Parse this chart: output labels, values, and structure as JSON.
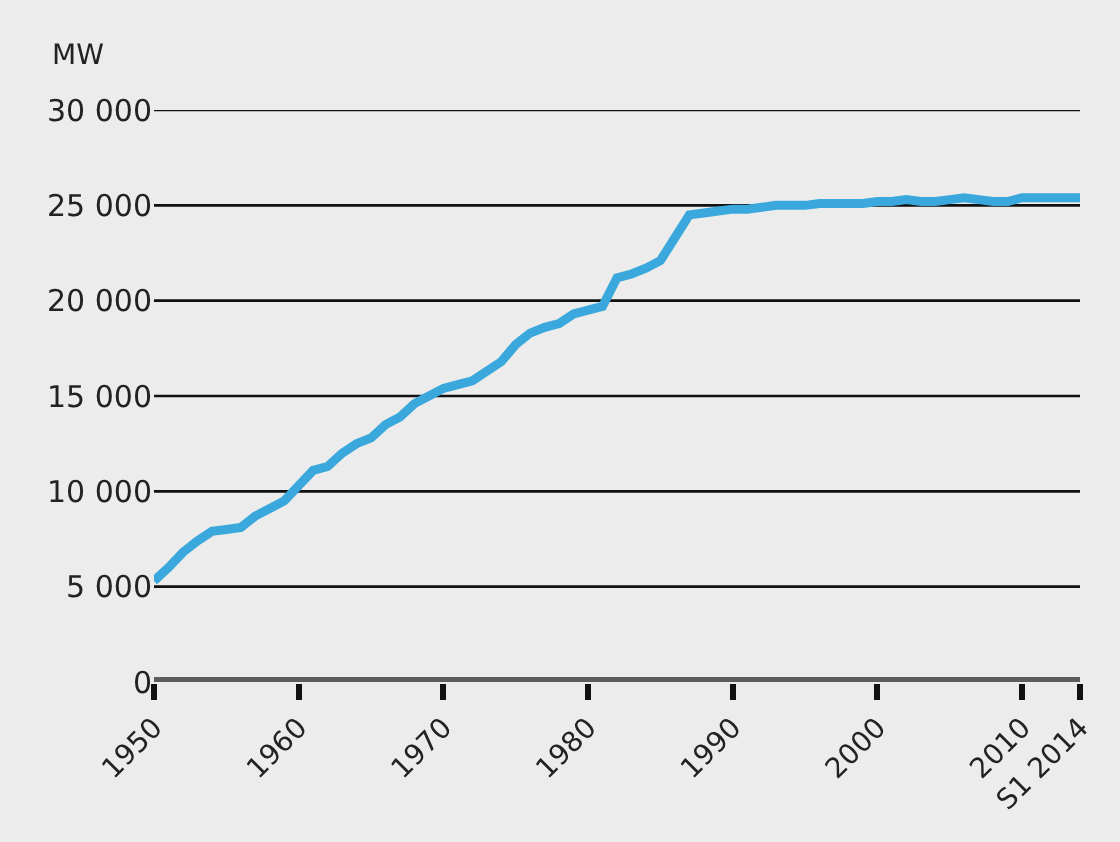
{
  "chart_data": {
    "type": "line",
    "ylabel": "MW",
    "x": [
      1950,
      1951,
      1952,
      1953,
      1954,
      1955,
      1956,
      1957,
      1958,
      1959,
      1960,
      1961,
      1962,
      1963,
      1964,
      1965,
      1966,
      1967,
      1968,
      1969,
      1970,
      1971,
      1972,
      1973,
      1974,
      1975,
      1976,
      1977,
      1978,
      1979,
      1980,
      1981,
      1982,
      1983,
      1984,
      1985,
      1986,
      1987,
      1988,
      1989,
      1990,
      1991,
      1992,
      1993,
      1994,
      1995,
      1996,
      1997,
      1998,
      1999,
      2000,
      2001,
      2002,
      2003,
      2004,
      2005,
      2006,
      2007,
      2008,
      2009,
      2010,
      2011,
      2012,
      2013,
      2014
    ],
    "series": [
      {
        "color": "#3aa8dc",
        "values": [
          5300,
          6000,
          6800,
          7400,
          7900,
          8000,
          8100,
          8700,
          9100,
          9500,
          10300,
          11100,
          11300,
          12000,
          12500,
          12800,
          13500,
          13900,
          14600,
          15000,
          15400,
          15600,
          15800,
          16300,
          16800,
          17700,
          18300,
          18600,
          18800,
          19300,
          19500,
          19700,
          21200,
          21400,
          21700,
          22100,
          23300,
          24500,
          24600,
          24700,
          24800,
          24800,
          24900,
          25000,
          25000,
          25000,
          25100,
          25100,
          25100,
          25100,
          25200,
          25200,
          25300,
          25200,
          25200,
          25300,
          25400,
          25300,
          25200,
          25200,
          25400,
          25400,
          25400,
          25400,
          25400
        ]
      }
    ],
    "xlim": [
      1950,
      2014
    ],
    "xticks": [
      1950,
      1960,
      1970,
      1980,
      1990,
      2000,
      2010,
      {
        "value": 2014,
        "label": "S1 2014"
      }
    ],
    "ylim": [
      0,
      30000
    ],
    "yticks": [
      {
        "value": 0,
        "label": "0"
      },
      {
        "value": 5000,
        "label": "5 000"
      },
      {
        "value": 10000,
        "label": "10 000"
      },
      {
        "value": 15000,
        "label": "15 000"
      },
      {
        "value": 20000,
        "label": "20 000"
      },
      {
        "value": 25000,
        "label": "25 000"
      },
      {
        "value": 30000,
        "label": "30 000"
      }
    ],
    "grid": "y",
    "marker": "none",
    "line_style": "solid"
  }
}
